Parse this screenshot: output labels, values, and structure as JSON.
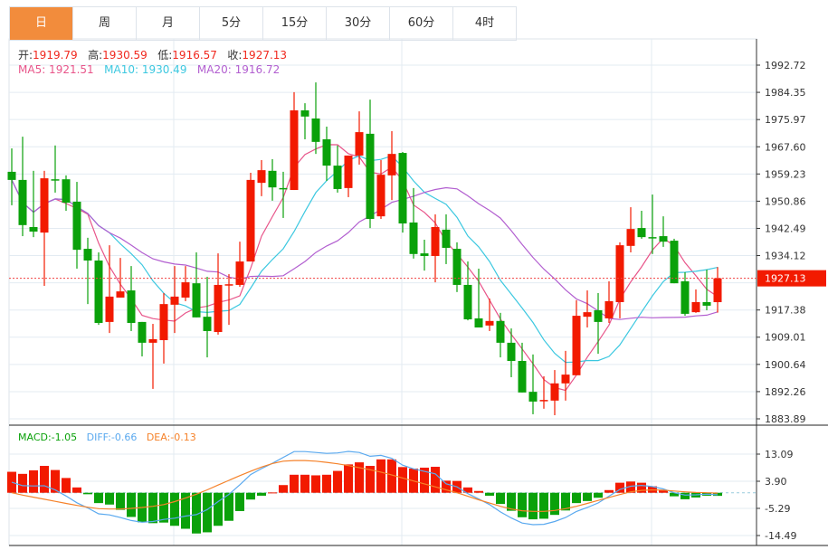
{
  "tabs": [
    {
      "label": "日",
      "active": true
    },
    {
      "label": "周",
      "active": false
    },
    {
      "label": "月",
      "active": false
    },
    {
      "label": "5分",
      "active": false
    },
    {
      "label": "15分",
      "active": false
    },
    {
      "label": "30分",
      "active": false
    },
    {
      "label": "60分",
      "active": false
    },
    {
      "label": "4时",
      "active": false
    }
  ],
  "ohlc_info": {
    "open_label": "开:",
    "open": "1919.79",
    "high_label": "高:",
    "high": "1930.59",
    "low_label": "低:",
    "low": "1916.57",
    "close_label": "收:",
    "close": "1927.13"
  },
  "ma_info": {
    "ma5": "MA5: 1921.51",
    "ma10": "MA10: 1930.49",
    "ma20": "MA20: 1916.72"
  },
  "macd_info": {
    "macd": "MACD:-1.05",
    "diff": "DIFF:-0.66",
    "dea": "DEA:-0.13"
  },
  "colors": {
    "up": "#f21a00",
    "down": "#0aa10a",
    "ma5": "#e8558a",
    "ma10": "#3cc8e0",
    "ma20": "#b25fd0",
    "diff": "#5aa9ef",
    "dea": "#f5822a",
    "active_tab": "#f28c3c"
  },
  "chart_data": {
    "type": "candlestick",
    "price_axis": {
      "ylim": [
        1883.89,
        1992.72
      ],
      "ticks": [
        "1992.72",
        "1984.35",
        "1975.97",
        "1967.60",
        "1959.23",
        "1950.86",
        "1942.49",
        "1934.12",
        "1917.38",
        "1909.01",
        "1900.64",
        "1892.26",
        "1883.89"
      ],
      "last_price": "1927.13"
    },
    "candles_ochl_note": "each entry [open, close, high, low]",
    "candles": [
      [
        1959.9,
        1957.4,
        1967.1,
        1949.6
      ],
      [
        1957.4,
        1943.5,
        1970.7,
        1940.1
      ],
      [
        1942.9,
        1941.5,
        1960.2,
        1939.8
      ],
      [
        1941.2,
        1957.9,
        1960.2,
        1924.8
      ],
      [
        1957.6,
        1957.4,
        1968.0,
        1953.5
      ],
      [
        1957.6,
        1950.4,
        1958.8,
        1947.9
      ],
      [
        1950.7,
        1935.9,
        1956.8,
        1930.1
      ],
      [
        1936.2,
        1932.6,
        1939.6,
        1919.2
      ],
      [
        1932.6,
        1913.4,
        1935.1,
        1912.8
      ],
      [
        1913.7,
        1921.5,
        1937.3,
        1910.3
      ],
      [
        1921.2,
        1923.1,
        1933.4,
        1921.2
      ],
      [
        1923.4,
        1913.4,
        1930.9,
        1910.9
      ],
      [
        1913.7,
        1907.3,
        1913.7,
        1903.1
      ],
      [
        1907.3,
        1908.4,
        1913.1,
        1893.1
      ],
      [
        1908.1,
        1919.2,
        1922.6,
        1900.9
      ],
      [
        1919.0,
        1921.5,
        1930.9,
        1910.3
      ],
      [
        1921.2,
        1925.9,
        1930.9,
        1920.1
      ],
      [
        1925.6,
        1915.1,
        1935.1,
        1915.1
      ],
      [
        1915.3,
        1910.9,
        1927.6,
        1902.8
      ],
      [
        1910.6,
        1925.1,
        1934.8,
        1909.8
      ],
      [
        1925.1,
        1925.3,
        1928.4,
        1912.8
      ],
      [
        1925.1,
        1932.3,
        1938.4,
        1924.5
      ],
      [
        1932.3,
        1957.4,
        1959.6,
        1932.3
      ],
      [
        1956.5,
        1960.4,
        1963.5,
        1952.4
      ],
      [
        1960.2,
        1955.1,
        1963.8,
        1951.0
      ],
      [
        1954.9,
        1954.7,
        1959.9,
        1945.7
      ],
      [
        1954.3,
        1978.8,
        1984.4,
        1954.3
      ],
      [
        1978.8,
        1976.9,
        1981.0,
        1969.9
      ],
      [
        1976.3,
        1969.1,
        1987.4,
        1965.4
      ],
      [
        1969.9,
        1961.8,
        1973.8,
        1957.1
      ],
      [
        1961.8,
        1954.6,
        1968.0,
        1953.5
      ],
      [
        1954.9,
        1964.9,
        1964.9,
        1952.1
      ],
      [
        1964.9,
        1972.1,
        1978.5,
        1962.1
      ],
      [
        1971.6,
        1945.4,
        1982.1,
        1942.6
      ],
      [
        1946.2,
        1959.0,
        1963.5,
        1945.4
      ],
      [
        1958.8,
        1965.4,
        1972.4,
        1951.2
      ],
      [
        1965.7,
        1944.0,
        1966.0,
        1941.2
      ],
      [
        1944.3,
        1934.6,
        1954.9,
        1933.2
      ],
      [
        1934.8,
        1934.0,
        1939.0,
        1929.5
      ],
      [
        1934.0,
        1942.9,
        1946.8,
        1925.9
      ],
      [
        1942.1,
        1936.5,
        1946.8,
        1931.5
      ],
      [
        1936.2,
        1925.1,
        1938.2,
        1922.9
      ],
      [
        1925.1,
        1914.5,
        1932.3,
        1914.2
      ],
      [
        1914.8,
        1912.0,
        1930.1,
        1912.0
      ],
      [
        1912.6,
        1914.0,
        1920.9,
        1910.9
      ],
      [
        1914.0,
        1907.3,
        1916.5,
        1902.8
      ],
      [
        1907.3,
        1901.7,
        1911.7,
        1896.7
      ],
      [
        1901.7,
        1892.0,
        1907.3,
        1892.0
      ],
      [
        1892.2,
        1889.2,
        1903.7,
        1885.3
      ],
      [
        1889.5,
        1889.7,
        1897.0,
        1887.0
      ],
      [
        1889.5,
        1894.8,
        1898.9,
        1885.0
      ],
      [
        1894.8,
        1897.5,
        1904.8,
        1889.5
      ],
      [
        1897.3,
        1915.6,
        1920.4,
        1897.3
      ],
      [
        1915.3,
        1916.7,
        1923.4,
        1912.0
      ],
      [
        1917.3,
        1913.7,
        1922.6,
        1903.9
      ],
      [
        1914.8,
        1920.1,
        1926.2,
        1913.4
      ],
      [
        1919.8,
        1937.3,
        1938.2,
        1914.8
      ],
      [
        1937.1,
        1942.3,
        1949.0,
        1935.1
      ],
      [
        1942.6,
        1939.8,
        1947.9,
        1939.3
      ],
      [
        1939.8,
        1939.6,
        1952.9,
        1934.6
      ],
      [
        1940.1,
        1938.4,
        1946.2,
        1936.8
      ],
      [
        1938.7,
        1925.6,
        1939.3,
        1925.6
      ],
      [
        1926.2,
        1916.2,
        1929.0,
        1915.6
      ],
      [
        1916.7,
        1919.8,
        1923.7,
        1916.5
      ],
      [
        1919.8,
        1918.7,
        1929.8,
        1917.3
      ],
      [
        1919.79,
        1927.13,
        1930.59,
        1916.57
      ]
    ],
    "macd_axis": {
      "ylim": [
        -14.49,
        13.09
      ],
      "ticks": [
        "13.09",
        "3.90",
        "-5.29",
        "-14.49"
      ]
    },
    "macd": [
      7.1,
      6.4,
      7.6,
      9.1,
      7.7,
      5.0,
      1.8,
      -0.5,
      -3.5,
      -4.0,
      -5.8,
      -8.2,
      -10.0,
      -10.3,
      -10.1,
      -11.2,
      -12.2,
      -13.8,
      -13.4,
      -11.2,
      -9.5,
      -6.2,
      -2.3,
      -1.0,
      0.1,
      2.6,
      6.1,
      6.1,
      5.9,
      6.1,
      7.4,
      9.6,
      10.3,
      9.1,
      11.3,
      11.3,
      8.7,
      8.2,
      8.5,
      8.8,
      4.1,
      4.0,
      1.8,
      0.6,
      -1.0,
      -3.8,
      -6.1,
      -8.3,
      -9.0,
      -8.8,
      -7.5,
      -6.0,
      -3.5,
      -2.8,
      -1.7,
      0.9,
      3.4,
      3.8,
      3.4,
      2.2,
      0.8,
      -1.2,
      -2.2,
      -1.6,
      -1.0,
      -1.05
    ],
    "dea": [
      0,
      -0.8,
      -1.5,
      -2.2,
      -2.9,
      -3.6,
      -4.3,
      -4.9,
      -5.4,
      -5.5,
      -5.5,
      -5.3,
      -5.0,
      -4.6,
      -4.0,
      -3.0,
      -1.8,
      -0.5,
      1.0,
      2.6,
      4.2,
      5.8,
      7.3,
      8.7,
      9.9,
      10.7,
      10.9,
      10.9,
      10.7,
      10.3,
      9.8,
      9.2,
      8.5,
      7.8,
      7.0,
      6.0,
      5.0,
      4.0,
      3.0,
      2.0,
      1.0,
      0.0,
      -1.2,
      -2.4,
      -3.5,
      -4.6,
      -5.5,
      -6.1,
      -6.3,
      -6.3,
      -6.0,
      -5.4,
      -4.6,
      -3.6,
      -2.6,
      -1.6,
      -0.6,
      0.3,
      0.8,
      1.0,
      0.9,
      0.6,
      0.3,
      0.1,
      0.0,
      -0.13
    ]
  }
}
